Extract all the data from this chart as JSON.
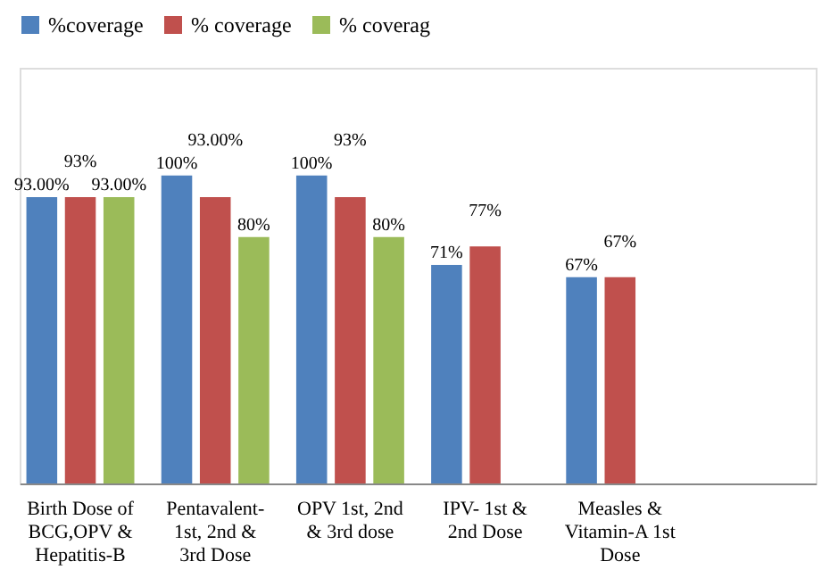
{
  "chart_data": {
    "type": "bar",
    "categories": [
      "Birth Dose of BCG,OPV & Hepatitis-B",
      "Pentavalent- 1st, 2nd & 3rd Dose",
      "OPV 1st, 2nd & 3rd dose",
      "IPV- 1st & 2nd Dose",
      "Measles & Vitamin-A 1st Dose",
      null
    ],
    "series": [
      {
        "name": "%coverage",
        "color": "#4f81bd",
        "values": [
          93,
          100,
          100,
          71,
          67,
          null
        ],
        "value_labels": [
          "93.00%",
          "100%",
          "100%",
          "71%",
          "67%",
          null
        ]
      },
      {
        "name": "% coverage",
        "color": "#c0504d",
        "values": [
          93,
          93,
          93,
          77,
          67,
          null
        ],
        "value_labels": [
          "93%",
          "93.00%",
          "93%",
          "77%",
          "67%",
          null
        ]
      },
      {
        "name": "% coverag",
        "color": "#9bbb59",
        "values": [
          93,
          80,
          80,
          null,
          null,
          null
        ],
        "value_labels": [
          "93.00%",
          "80%",
          "80%",
          null,
          null,
          null
        ]
      }
    ],
    "ylim": [
      0,
      135
    ],
    "legend": "top",
    "grid": false
  }
}
